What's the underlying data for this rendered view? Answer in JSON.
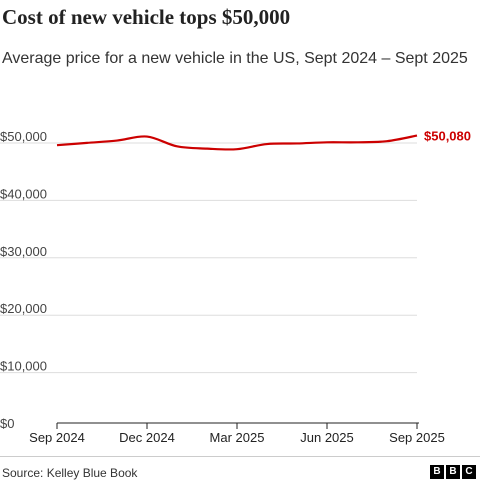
{
  "title": "Cost of new vehicle tops $50,000",
  "subtitle": "Average price for a new vehicle in the US, Sept 2024 – Sept 2025",
  "source": "Source: Kelley Blue Book",
  "logo": [
    "B",
    "B",
    "C"
  ],
  "colors": {
    "line": "#cc0000",
    "grid": "#dddddd",
    "axis": "#222222"
  },
  "chart_data": {
    "type": "line",
    "title": "Cost of new vehicle tops $50,000",
    "subtitle": "Average price for a new vehicle in the US, Sept 2024 – Sept 2025",
    "xlabel": "",
    "ylabel": "",
    "x_tick_labels": [
      "Sep 2024",
      "Dec 2024",
      "Mar 2025",
      "Jun 2025",
      "Sep 2025"
    ],
    "y_tick_labels": [
      "$0",
      "$10,000",
      "$20,000",
      "$30,000",
      "$40,000",
      "$50,000"
    ],
    "y_ticks": [
      0,
      10000,
      20000,
      30000,
      40000,
      50000
    ],
    "ylim": [
      0,
      50000
    ],
    "grid": true,
    "x": [
      "Sep 2024",
      "Oct 2024",
      "Nov 2024",
      "Dec 2024",
      "Jan 2025",
      "Feb 2025",
      "Mar 2025",
      "Apr 2025",
      "May 2025",
      "Jun 2025",
      "Jul 2025",
      "Aug 2025",
      "Sep 2025"
    ],
    "series": [
      {
        "values": [
          48400,
          48800,
          49200,
          49900,
          48200,
          47800,
          47700,
          48600,
          48700,
          48900,
          48900,
          49100,
          50080
        ]
      }
    ],
    "annotations": [
      {
        "text": "$50,080",
        "x": "Sep 2025",
        "y": 50080
      }
    ]
  }
}
